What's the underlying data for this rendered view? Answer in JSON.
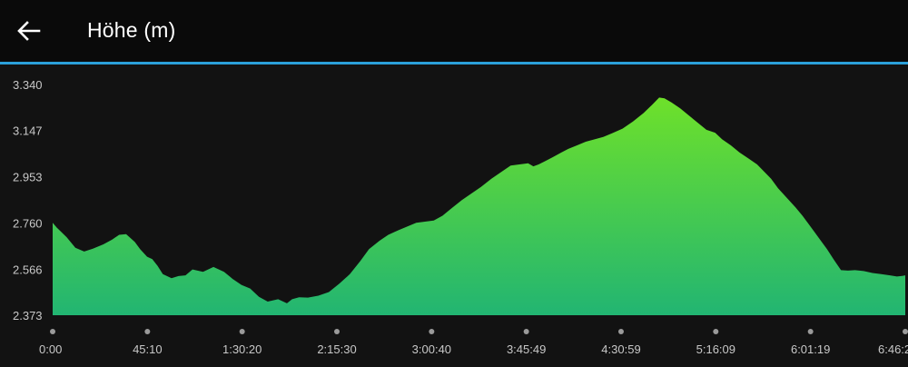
{
  "header": {
    "title": "Höhe (m)",
    "back_icon": "arrow-left-icon",
    "accent_line_color": "#2ba0da"
  },
  "chart_data": {
    "type": "area",
    "title": "Höhe (m)",
    "xlabel": "",
    "ylabel": "",
    "y_tick_labels": [
      "3.340",
      "3.147",
      "2.953",
      "2.760",
      "2.566",
      "2.373"
    ],
    "y_ticks": [
      3340,
      3147,
      2953,
      2760,
      2566,
      2373
    ],
    "ylim": [
      2373,
      3340
    ],
    "x_tick_labels": [
      "0:00",
      "45:10",
      "1:30:20",
      "2:15:30",
      "3:00:40",
      "3:45:49",
      "4:30:59",
      "5:16:09",
      "6:01:19",
      "6:46:2"
    ],
    "x_ticks_seconds": [
      0,
      2710,
      5420,
      8130,
      10840,
      13549,
      16259,
      18969,
      21679,
      24389
    ],
    "xlim_seconds": [
      0,
      24389
    ],
    "grid": false,
    "legend": "none",
    "fill_gradient": [
      "#6ee12a",
      "#22b572"
    ],
    "series": [
      {
        "x_seconds": [
          0,
          120,
          400,
          650,
          900,
          1150,
          1450,
          1700,
          1900,
          2100,
          2350,
          2500,
          2700,
          2850,
          3000,
          3150,
          3400,
          3600,
          3800,
          4000,
          4300,
          4600,
          4900,
          5150,
          5400,
          5650,
          5900,
          6150,
          6450,
          6700,
          6850,
          7050,
          7300,
          7600,
          7900,
          8200,
          8500,
          8800,
          9050,
          9350,
          9600,
          9900,
          10150,
          10400,
          10650,
          10900,
          11150,
          11400,
          11700,
          11950,
          12250,
          12550,
          12850,
          13100,
          13350,
          13600,
          13750,
          13900,
          14100,
          14300,
          14550,
          14750,
          15000,
          15250,
          15500,
          15750,
          16000,
          16300,
          16600,
          16900,
          17150,
          17350,
          17500,
          17700,
          17950,
          18200,
          18450,
          18700,
          18950,
          19150,
          19400,
          19650,
          19900,
          20150,
          20350,
          20550,
          20750,
          21000,
          21250,
          21450,
          21700,
          21950,
          22150,
          22350,
          22550,
          22750,
          22950,
          23200,
          23450,
          23700,
          23950,
          24150,
          24300,
          24389
        ],
        "y": [
          2760,
          2740,
          2700,
          2656,
          2640,
          2652,
          2670,
          2690,
          2710,
          2713,
          2680,
          2650,
          2618,
          2608,
          2580,
          2545,
          2528,
          2537,
          2540,
          2565,
          2555,
          2575,
          2555,
          2525,
          2500,
          2485,
          2450,
          2430,
          2440,
          2423,
          2440,
          2448,
          2447,
          2455,
          2470,
          2505,
          2545,
          2600,
          2650,
          2685,
          2710,
          2730,
          2745,
          2760,
          2765,
          2770,
          2790,
          2820,
          2855,
          2880,
          2910,
          2945,
          2975,
          3000,
          3005,
          3010,
          2997,
          3005,
          3020,
          3035,
          3055,
          3070,
          3085,
          3100,
          3110,
          3120,
          3135,
          3155,
          3185,
          3220,
          3255,
          3285,
          3282,
          3265,
          3240,
          3210,
          3180,
          3150,
          3138,
          3110,
          3085,
          3055,
          3030,
          3005,
          2975,
          2945,
          2905,
          2865,
          2825,
          2790,
          2740,
          2690,
          2650,
          2605,
          2562,
          2560,
          2562,
          2558,
          2550,
          2545,
          2540,
          2535,
          2538,
          2540
        ]
      }
    ]
  }
}
